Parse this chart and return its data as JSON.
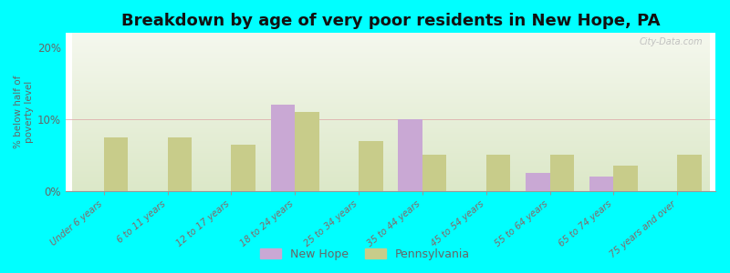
{
  "categories": [
    "Under 6 years",
    "6 to 11 years",
    "12 to 17 years",
    "18 to 24 years",
    "25 to 34 years",
    "35 to 44 years",
    "45 to 54 years",
    "55 to 64 years",
    "65 to 74 years",
    "75 years and over"
  ],
  "new_hope": [
    0,
    0,
    0,
    12.0,
    0,
    10.0,
    0,
    2.5,
    2.0,
    0
  ],
  "pennsylvania": [
    7.5,
    7.5,
    6.5,
    11.0,
    7.0,
    5.0,
    5.0,
    5.0,
    3.5,
    5.0
  ],
  "new_hope_color": "#c9a8d4",
  "pennsylvania_color": "#c8cc8a",
  "title": "Breakdown by age of very poor residents in New Hope, PA",
  "ylabel": "% below half of\npoverty level",
  "ylim": [
    0,
    22
  ],
  "yticks": [
    0,
    10,
    20
  ],
  "ytick_labels": [
    "0%",
    "10%",
    "20%"
  ],
  "background_color": "#00ffff",
  "plot_bg_color_top": "#f5f8ee",
  "plot_bg_color_bottom": "#dce8c8",
  "bar_width": 0.38,
  "legend_new_hope": "New Hope",
  "legend_pennsylvania": "Pennsylvania",
  "title_fontsize": 13,
  "axis_label_color": "#666666",
  "tick_label_color": "#886666",
  "watermark": "City-Data.com"
}
